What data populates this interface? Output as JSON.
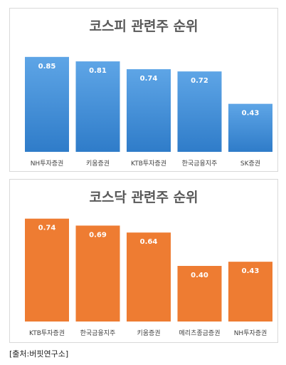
{
  "chart_data": [
    {
      "type": "bar",
      "title": "코스피 관련주 순위",
      "categories": [
        "NH투자증권",
        "키움증권",
        "KTB투자증권",
        "한국금융지주",
        "SK증권"
      ],
      "values": [
        0.85,
        0.81,
        0.74,
        0.72,
        0.43
      ],
      "value_labels": [
        "0.85",
        "0.81",
        "0.74",
        "0.72",
        "0.43"
      ],
      "ylim": [
        0,
        0.9
      ],
      "grid": false,
      "bar_color": "#3f8ad6",
      "bar_color_light": "#5ea5e6"
    },
    {
      "type": "bar",
      "title": "코스닥 관련주 순위",
      "categories": [
        "KTB투자증권",
        "한국금융지주",
        "키움증권",
        "메리츠종금증권",
        "NH투자증권"
      ],
      "values": [
        0.74,
        0.69,
        0.64,
        0.4,
        0.43
      ],
      "value_labels": [
        "0.74",
        "0.69",
        "0.64",
        "0.40",
        "0.43"
      ],
      "ylim": [
        0,
        0.8
      ],
      "grid": false,
      "bar_color": "#ee7c32"
    }
  ],
  "footer": {
    "source": "[출처:버핏연구소]"
  }
}
